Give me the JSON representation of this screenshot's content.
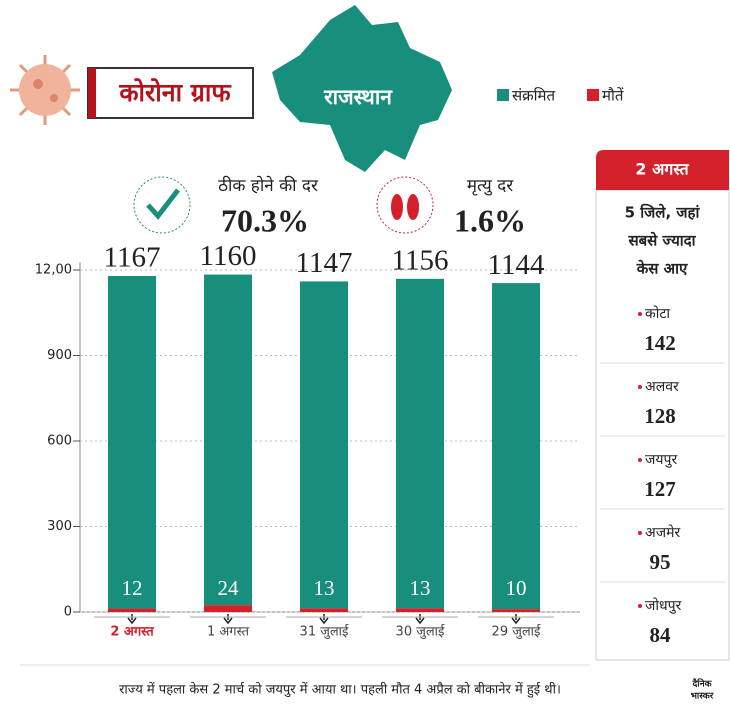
{
  "header": {
    "title": "कोरोना ग्राफ",
    "region": "राजस्थान"
  },
  "stats": [
    {
      "label": "ठीक होने की दर",
      "value": "70.3%"
    },
    {
      "label": "मृत्यु दर",
      "value": "1.6%"
    }
  ],
  "chart_data": {
    "type": "bar",
    "categories": [
      "2 अगस्त",
      "1 अगस्त",
      "31 जुलाई",
      "30 जुलाई",
      "29 जुलाई"
    ],
    "series": [
      {
        "name": "संक्रमित",
        "color": "#178f7c",
        "values": [
          1167,
          1160,
          1147,
          1156,
          1144
        ]
      },
      {
        "name": "मौतें",
        "color": "#d4202a",
        "values": [
          12,
          24,
          13,
          13,
          10
        ]
      }
    ],
    "ylim": [
      0,
      1200
    ],
    "yticks": [
      0,
      300,
      600,
      900,
      {
        "value": 1200,
        "label": "12,00"
      }
    ],
    "grid": true
  },
  "sidebar": {
    "date": "2 अगस्त",
    "title_lines": [
      "5 जिले, जहां",
      "सबसे ज्यादा",
      "केस आए"
    ],
    "districts": [
      {
        "name": "कोटा",
        "cases": 142
      },
      {
        "name": "अलवर",
        "cases": 128
      },
      {
        "name": "जयपुर",
        "cases": 127
      },
      {
        "name": "अजमेर",
        "cases": 95
      },
      {
        "name": "जोधपुर",
        "cases": 84
      }
    ]
  },
  "footer": {
    "note": "राज्य में पहला केस 2 मार्च को जयपुर में आया था। पहली मौत 4 अप्रैल को बीकानेर में हुई थी।",
    "logo": [
      "दैनिक",
      "भास्कर"
    ]
  }
}
